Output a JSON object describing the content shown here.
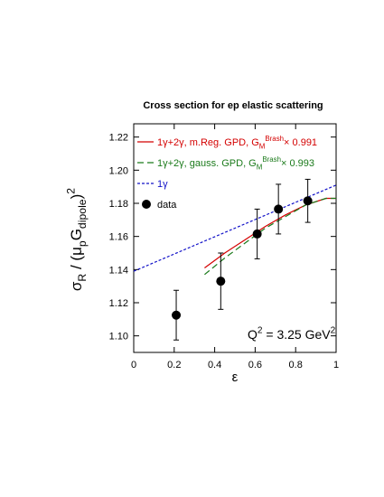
{
  "chart_data": {
    "type": "line",
    "title": "Cross section for ep elastic scattering",
    "xlabel": "ε",
    "ylabel": [
      {
        "text": "σ"
      },
      {
        "text": "R",
        "pos": "sub"
      },
      {
        "text": " / (μ"
      },
      {
        "text": "p",
        "pos": "sub"
      },
      {
        "text": "G"
      },
      {
        "text": "dipole",
        "pos": "sub"
      },
      {
        "text": ")"
      },
      {
        "text": "2",
        "pos": "sup"
      }
    ],
    "annotation": [
      {
        "text": "Q"
      },
      {
        "text": "2",
        "pos": "sup"
      },
      {
        "text": " = 3.25 GeV"
      },
      {
        "text": "2",
        "pos": "sup"
      }
    ],
    "xlim": [
      0,
      1
    ],
    "xticks": [
      0,
      0.2,
      0.4,
      0.6,
      0.8,
      1
    ],
    "ylim": [
      1.09,
      1.228
    ],
    "yticks": [
      {
        "value": 1.1,
        "label": "1.10"
      },
      1.12,
      1.14,
      1.16,
      1.18,
      {
        "value": 1.2,
        "label": "1.20"
      },
      1.22
    ],
    "legend": "upper left",
    "series": [
      {
        "name": [
          {
            "text": "1γ+2γ, m.Reg. GPD, G"
          },
          {
            "text": "M",
            "pos": "sub"
          },
          {
            "text": "Brash",
            "pos": "sup"
          },
          {
            "text": "× 0.991"
          }
        ],
        "color": "#d40000",
        "style": "solid",
        "x": [
          0.35,
          0.45,
          0.55,
          0.65,
          0.75,
          0.85,
          0.95,
          1.0
        ],
        "values": [
          1.141,
          1.15,
          1.158,
          1.166,
          1.173,
          1.179,
          1.183,
          1.183
        ]
      },
      {
        "name": [
          {
            "text": "1γ+2γ, gauss. GPD, G"
          },
          {
            "text": "M",
            "pos": "sub"
          },
          {
            "text": "Brash",
            "pos": "sup"
          },
          {
            "text": "× 0.993"
          }
        ],
        "color": "#1a7a1a",
        "style": "dashed",
        "x": [
          0.35,
          0.45,
          0.55,
          0.65,
          0.75,
          0.85,
          0.95,
          1.0
        ],
        "values": [
          1.137,
          1.147,
          1.156,
          1.165,
          1.172,
          1.179,
          1.183,
          1.183
        ]
      },
      {
        "name": [
          {
            "text": "1γ"
          }
        ],
        "color": "#1010c8",
        "style": "dotted",
        "x": [
          0,
          1
        ],
        "values": [
          1.139,
          1.191
        ]
      },
      {
        "name": [
          {
            "text": "data"
          }
        ],
        "color": "#000000",
        "style": "points",
        "x": [
          0.21,
          0.43,
          0.61,
          0.715,
          0.86
        ],
        "values": [
          1.1125,
          1.133,
          1.1615,
          1.1765,
          1.1815
        ],
        "errors": [
          0.015,
          0.017,
          0.015,
          0.015,
          0.013
        ]
      }
    ]
  }
}
